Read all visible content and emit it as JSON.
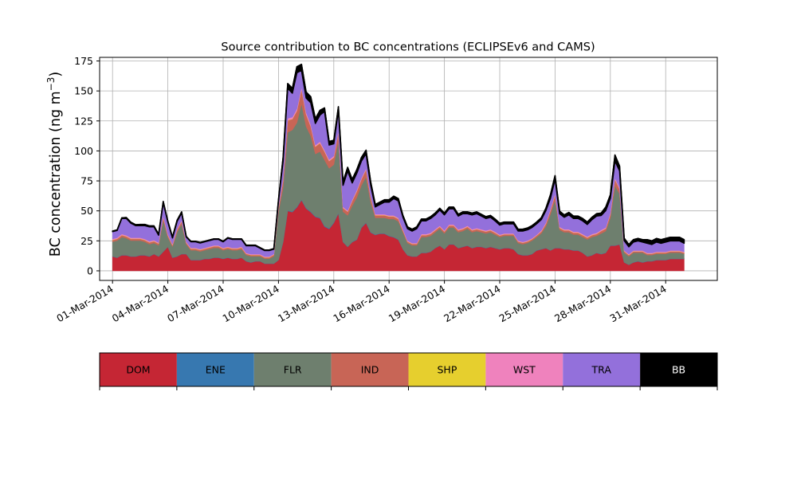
{
  "chart_data": {
    "type": "area",
    "stacked": true,
    "title": "Source contribution to BC concentrations (ECLIPSEv6 and CAMS)",
    "ylabel_main": "BC concentration (ng m",
    "ylabel_exp": "−3",
    "ylabel_close": ")",
    "xlabel": "",
    "ylim": [
      -8,
      178
    ],
    "xlim": [
      -0.7,
      32.8
    ],
    "grid": true,
    "yticks": [
      0,
      25,
      50,
      75,
      100,
      125,
      150,
      175
    ],
    "ytick_labels": [
      "0",
      "25",
      "50",
      "75",
      "100",
      "125",
      "150",
      "175"
    ],
    "xticks": [
      0,
      3,
      6,
      9,
      12,
      15,
      18,
      21,
      24,
      27,
      30
    ],
    "xtick_labels": [
      "01-Mar-2014",
      "04-Mar-2014",
      "07-Mar-2014",
      "10-Mar-2014",
      "13-Mar-2014",
      "16-Mar-2014",
      "19-Mar-2014",
      "22-Mar-2014",
      "25-Mar-2014",
      "28-Mar-2014",
      "31-Mar-2014"
    ],
    "x_unit": "days since 01-Mar-2014",
    "x": [
      0.0,
      0.25,
      0.5,
      0.75,
      1.0,
      1.25,
      1.5,
      1.75,
      2.0,
      2.25,
      2.5,
      2.75,
      3.0,
      3.25,
      3.5,
      3.75,
      4.0,
      4.25,
      4.5,
      4.75,
      5.0,
      5.25,
      5.5,
      5.75,
      6.0,
      6.25,
      6.5,
      6.75,
      7.0,
      7.25,
      7.5,
      7.75,
      8.0,
      8.25,
      8.5,
      8.75,
      9.0,
      9.25,
      9.5,
      9.75,
      10.0,
      10.25,
      10.5,
      10.75,
      11.0,
      11.25,
      11.5,
      11.75,
      12.0,
      12.25,
      12.5,
      12.75,
      13.0,
      13.25,
      13.5,
      13.75,
      14.0,
      14.25,
      14.5,
      14.75,
      15.0,
      15.25,
      15.5,
      15.75,
      16.0,
      16.25,
      16.5,
      16.75,
      17.0,
      17.25,
      17.5,
      17.75,
      18.0,
      18.25,
      18.5,
      18.75,
      19.0,
      19.25,
      19.5,
      19.75,
      20.0,
      20.25,
      20.5,
      20.75,
      21.0,
      21.25,
      21.5,
      21.75,
      22.0,
      22.25,
      22.5,
      22.75,
      23.0,
      23.25,
      23.5,
      23.75,
      24.0,
      24.25,
      24.5,
      24.75,
      25.0,
      25.25,
      25.5,
      25.75,
      26.0,
      26.25,
      26.5,
      26.75,
      27.0,
      27.25,
      27.5,
      27.75,
      28.0,
      28.25,
      28.5,
      28.75,
      29.0,
      29.25,
      29.5,
      29.75,
      30.0,
      30.25,
      30.5,
      30.75,
      31.0
    ],
    "series": [
      {
        "name": "DOM",
        "color": "#c52634",
        "values": [
          12,
          11,
          13,
          13,
          12,
          12,
          13,
          13,
          12,
          14,
          12,
          16,
          20,
          11,
          12,
          14,
          14,
          9,
          9,
          9,
          10,
          10,
          11,
          11,
          10,
          11,
          10,
          10,
          11,
          8,
          7,
          8,
          8,
          6,
          6,
          6,
          9,
          24,
          50,
          49,
          53,
          59,
          52,
          49,
          45,
          44,
          37,
          35,
          40,
          48,
          24,
          20,
          24,
          26,
          36,
          40,
          32,
          30,
          31,
          31,
          29,
          28,
          26,
          18,
          13,
          12,
          12,
          15,
          15,
          16,
          19,
          21,
          18,
          22,
          22,
          19,
          20,
          21,
          19,
          20,
          20,
          19,
          20,
          19,
          18,
          19,
          19,
          18,
          14,
          13,
          13,
          14,
          17,
          18,
          19,
          17,
          19,
          19,
          18,
          18,
          17,
          17,
          15,
          12,
          13,
          15,
          14,
          15,
          21,
          21,
          22,
          7,
          5,
          7,
          8,
          7,
          8,
          8,
          9,
          9,
          9,
          10,
          10,
          10,
          10
        ]
      },
      {
        "name": "ENE",
        "color": "#3778b0",
        "values": [
          0.2,
          0.2,
          0.2,
          0.2,
          0.2,
          0.2,
          0.2,
          0.2,
          0.2,
          0.2,
          0.2,
          0.2,
          0.2,
          0.2,
          0.2,
          0.2,
          0.2,
          0.2,
          0.2,
          0.2,
          0.2,
          0.2,
          0.2,
          0.2,
          0.2,
          0.2,
          0.2,
          0.2,
          0.2,
          0.2,
          0.2,
          0.2,
          0.2,
          0.2,
          0.2,
          0.2,
          0.3,
          0.4,
          0.5,
          0.5,
          0.5,
          0.5,
          0.5,
          0.5,
          0.5,
          0.5,
          0.5,
          0.5,
          0.5,
          0.5,
          0.3,
          0.3,
          0.3,
          0.3,
          0.4,
          0.4,
          0.4,
          0.3,
          0.3,
          0.3,
          0.3,
          0.3,
          0.3,
          0.2,
          0.2,
          0.2,
          0.2,
          0.2,
          0.2,
          0.2,
          0.2,
          0.2,
          0.2,
          0.2,
          0.2,
          0.2,
          0.2,
          0.2,
          0.2,
          0.2,
          0.2,
          0.2,
          0.2,
          0.2,
          0.2,
          0.2,
          0.2,
          0.2,
          0.2,
          0.2,
          0.2,
          0.2,
          0.2,
          0.2,
          0.2,
          0.2,
          0.2,
          0.2,
          0.2,
          0.2,
          0.2,
          0.2,
          0.2,
          0.2,
          0.2,
          0.2,
          0.2,
          0.2,
          0.2,
          0.2,
          0.2,
          0.2,
          0.2,
          0.2,
          0.2,
          0.2,
          0.2,
          0.2,
          0.2,
          0.2,
          0.2,
          0.2,
          0.2,
          0.2,
          0.2
        ]
      },
      {
        "name": "FLR",
        "color": "#6e7f6e",
        "values": [
          12,
          14,
          15,
          14,
          13,
          13,
          12,
          11,
          10,
          9,
          9,
          26,
          8,
          9,
          20,
          25,
          8,
          8,
          8,
          7,
          7,
          8,
          8,
          8,
          7,
          7,
          7,
          7,
          7,
          5,
          5,
          4,
          4,
          4,
          4,
          6,
          40,
          45,
          65,
          68,
          70,
          80,
          68,
          63,
          52,
          55,
          55,
          50,
          48,
          60,
          25,
          26,
          30,
          35,
          35,
          38,
          25,
          14,
          13,
          13,
          14,
          15,
          15,
          14,
          10,
          9,
          9,
          13,
          13,
          13,
          13,
          14,
          13,
          14,
          14,
          13,
          13,
          14,
          13,
          13,
          12,
          12,
          12,
          11,
          10,
          10,
          10,
          11,
          9,
          9,
          10,
          11,
          11,
          13,
          18,
          30,
          40,
          15,
          14,
          14,
          13,
          13,
          13,
          14,
          15,
          14,
          17,
          18,
          23,
          50,
          42,
          8,
          7,
          8,
          7,
          8,
          5,
          5,
          5,
          5,
          5,
          5,
          5,
          5,
          4
        ]
      },
      {
        "name": "IND",
        "color": "#c86556",
        "values": [
          1.5,
          1.5,
          1.5,
          1.5,
          1.5,
          1.5,
          1.5,
          1.5,
          1.5,
          1.5,
          1.5,
          2.5,
          1.5,
          1.2,
          2,
          2,
          1.2,
          1.2,
          1.2,
          1.2,
          1.2,
          1.2,
          1.2,
          1.2,
          1.2,
          1.2,
          1.2,
          1.2,
          1.2,
          1.0,
          1.0,
          1.0,
          1.0,
          1.0,
          1.0,
          1.2,
          3,
          6,
          10,
          9,
          10,
          12,
          10,
          8,
          6,
          7,
          7,
          6,
          6,
          7,
          3,
          3,
          4,
          5,
          5,
          6,
          4,
          2,
          2,
          2,
          2,
          2,
          2,
          1.5,
          1.2,
          1.2,
          1.2,
          1.5,
          1.5,
          1.5,
          1.5,
          1.5,
          1.5,
          1.5,
          1.5,
          1.5,
          1.5,
          1.5,
          1.5,
          1.5,
          1.5,
          1.5,
          1.5,
          1.5,
          1.2,
          1.2,
          1.2,
          1.2,
          1.2,
          1.2,
          1.2,
          1.2,
          1.2,
          1.5,
          2,
          3,
          4,
          1.5,
          1.5,
          1.5,
          1.5,
          1.5,
          1.5,
          1.5,
          1.5,
          1.5,
          2,
          2,
          3,
          5,
          4,
          1.2,
          1.0,
          1.0,
          1.0,
          1.0,
          1.0,
          1.0,
          1.0,
          1.0,
          1.0,
          1.0,
          1.0,
          1.0,
          1.0
        ]
      },
      {
        "name": "SHP",
        "color": "#e6cf2e",
        "values": [
          0.2,
          0.2,
          0.2,
          0.2,
          0.2,
          0.2,
          0.2,
          0.2,
          0.2,
          0.2,
          0.2,
          0.2,
          0.2,
          0.2,
          0.2,
          0.2,
          0.2,
          0.2,
          0.2,
          0.2,
          0.2,
          0.2,
          0.2,
          0.2,
          0.2,
          0.2,
          0.2,
          0.2,
          0.2,
          0.2,
          0.2,
          0.2,
          0.2,
          0.2,
          0.2,
          0.2,
          0.2,
          0.2,
          0.2,
          0.2,
          0.2,
          0.2,
          0.2,
          0.2,
          0.2,
          0.2,
          0.2,
          0.2,
          0.2,
          0.2,
          0.2,
          0.2,
          0.2,
          0.2,
          0.2,
          0.2,
          0.2,
          0.2,
          0.2,
          0.2,
          0.2,
          0.2,
          0.2,
          0.2,
          0.2,
          0.2,
          0.2,
          0.2,
          0.2,
          0.2,
          0.2,
          0.2,
          0.2,
          0.2,
          0.2,
          0.2,
          0.2,
          0.2,
          0.2,
          0.2,
          0.2,
          0.2,
          0.2,
          0.2,
          0.2,
          0.2,
          0.2,
          0.2,
          0.2,
          0.2,
          0.2,
          0.2,
          0.2,
          0.2,
          0.2,
          0.2,
          0.2,
          0.2,
          0.2,
          0.2,
          0.2,
          0.2,
          0.2,
          0.2,
          0.2,
          0.2,
          0.2,
          0.2,
          0.2,
          0.2,
          0.2,
          0.2,
          0.2,
          0.2,
          0.2,
          0.2,
          0.2,
          0.2,
          0.2,
          0.2,
          0.2,
          0.2,
          0.2,
          0.2,
          0.2
        ]
      },
      {
        "name": "WST",
        "color": "#ef82bd",
        "values": [
          0.8,
          0.8,
          0.8,
          0.8,
          0.8,
          0.8,
          0.8,
          0.8,
          0.8,
          0.8,
          0.8,
          1.0,
          0.8,
          0.8,
          0.8,
          0.8,
          0.6,
          0.6,
          0.6,
          0.6,
          0.6,
          0.6,
          0.6,
          0.6,
          0.6,
          0.6,
          0.6,
          0.6,
          0.6,
          0.5,
          0.5,
          0.5,
          0.5,
          0.5,
          0.5,
          0.5,
          0.8,
          1.0,
          1.5,
          1.5,
          1.5,
          1.5,
          1.5,
          1.5,
          1.2,
          1.2,
          1.2,
          1.2,
          1.2,
          1.2,
          0.8,
          0.8,
          0.8,
          1.0,
          1.0,
          1.0,
          0.8,
          0.8,
          0.8,
          0.8,
          0.8,
          0.8,
          0.8,
          0.8,
          0.6,
          0.6,
          0.6,
          0.8,
          0.8,
          0.8,
          0.8,
          0.8,
          0.8,
          0.8,
          0.8,
          0.8,
          0.8,
          0.8,
          0.8,
          0.8,
          0.8,
          0.8,
          0.8,
          0.8,
          0.6,
          0.6,
          0.6,
          0.6,
          0.6,
          0.6,
          0.6,
          0.6,
          0.6,
          0.8,
          0.8,
          1.0,
          1.0,
          0.8,
          0.8,
          0.8,
          0.8,
          0.8,
          0.8,
          0.8,
          0.8,
          0.8,
          0.8,
          0.8,
          1.0,
          1.2,
          1.0,
          0.6,
          0.6,
          0.6,
          0.6,
          0.6,
          0.6,
          0.6,
          0.6,
          0.6,
          0.6,
          0.6,
          0.6,
          0.6,
          0.6
        ]
      },
      {
        "name": "TRA",
        "color": "#9370db",
        "values": [
          6,
          6,
          13,
          14,
          12,
          10,
          10,
          11,
          12,
          11,
          6,
          11,
          10,
          5,
          6,
          6,
          4,
          5,
          5,
          5,
          5,
          5,
          5,
          5,
          5,
          7,
          7,
          7,
          6,
          6,
          7,
          7,
          5,
          5,
          5,
          4,
          5,
          15,
          25,
          20,
          30,
          14,
          12,
          18,
          18,
          22,
          32,
          12,
          10,
          17,
          18,
          33,
          14,
          14,
          14,
          12,
          9,
          6,
          8,
          10,
          11,
          14,
          14,
          10,
          10,
          10,
          12,
          11,
          11,
          12,
          12,
          13,
          13,
          13,
          13,
          11,
          12,
          10,
          12,
          12,
          11,
          10,
          10,
          9,
          8,
          8,
          8,
          8,
          8,
          9,
          9,
          9,
          9,
          9,
          10,
          9,
          12,
          11,
          10,
          12,
          11,
          11,
          11,
          10,
          12,
          14,
          12,
          14,
          12,
          14,
          14,
          8,
          6,
          7,
          8,
          7,
          8,
          7,
          8,
          7,
          8,
          8,
          8,
          8,
          7
        ]
      },
      {
        "name": "BB",
        "color": "#000000",
        "values": [
          0.5,
          0.5,
          0.5,
          0.8,
          0.8,
          0.8,
          1.0,
          1.0,
          0.8,
          0.8,
          0.8,
          1.0,
          0.8,
          0.8,
          1.0,
          1.0,
          0.5,
          0.5,
          0.5,
          0.5,
          0.5,
          0.5,
          0.5,
          0.5,
          0.5,
          0.5,
          0.5,
          0.5,
          0.5,
          0.5,
          0.5,
          0.5,
          0.5,
          0.5,
          0.5,
          0.5,
          1.0,
          3,
          4,
          4,
          5,
          5,
          5,
          5,
          4,
          4,
          3,
          3,
          3,
          3,
          3,
          3,
          3,
          3,
          3,
          3,
          3,
          2,
          2,
          2,
          2,
          2,
          2,
          1.5,
          1.5,
          1.5,
          1.5,
          1.5,
          1.5,
          1.5,
          1.5,
          1.5,
          1.5,
          1.5,
          1.5,
          1.5,
          1.5,
          1.5,
          1.5,
          1.5,
          1.5,
          1.5,
          1.5,
          1.5,
          1.5,
          1.5,
          1.5,
          1.5,
          1.5,
          1.5,
          1.5,
          1.5,
          1.5,
          1.5,
          2,
          3,
          3,
          2,
          2,
          2,
          2,
          2,
          2,
          2,
          2,
          2,
          2,
          3,
          3,
          5,
          4,
          2,
          2,
          2,
          2,
          2,
          3,
          3,
          3,
          3,
          3,
          3,
          3,
          3,
          3
        ]
      }
    ],
    "legend": {
      "placement": "bottom",
      "entries": [
        {
          "label": "DOM",
          "color": "#c52634",
          "text_color": "#000000"
        },
        {
          "label": "ENE",
          "color": "#3778b0",
          "text_color": "#000000"
        },
        {
          "label": "FLR",
          "color": "#6e7f6e",
          "text_color": "#000000"
        },
        {
          "label": "IND",
          "color": "#c86556",
          "text_color": "#000000"
        },
        {
          "label": "SHP",
          "color": "#e6cf2e",
          "text_color": "#000000"
        },
        {
          "label": "WST",
          "color": "#ef82bd",
          "text_color": "#000000"
        },
        {
          "label": "TRA",
          "color": "#9370db",
          "text_color": "#000000"
        },
        {
          "label": "BB",
          "color": "#000000",
          "text_color": "#ffffff"
        }
      ]
    }
  }
}
